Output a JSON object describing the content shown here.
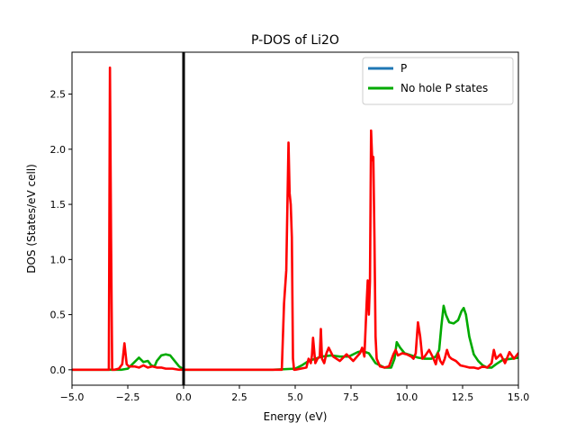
{
  "chart_data": {
    "type": "line",
    "title": "P-DOS of Li2O",
    "xlabel": "Energy (eV)",
    "ylabel": "DOS (States/eV cell)",
    "xlim": [
      -5,
      15
    ],
    "ylim": [
      -0.14,
      2.88
    ],
    "xticks": [
      -5.0,
      -2.5,
      0.0,
      2.5,
      5.0,
      7.5,
      10.0,
      12.5,
      15.0
    ],
    "xtick_labels": [
      "−5.0",
      "−2.5",
      "0.0",
      "2.5",
      "5.0",
      "7.5",
      "10.0",
      "12.5",
      "15.0"
    ],
    "yticks": [
      0.0,
      0.5,
      1.0,
      1.5,
      2.0,
      2.5
    ],
    "ytick_labels": [
      "0.0",
      "0.5",
      "1.0",
      "1.5",
      "2.0",
      "2.5"
    ],
    "grid": false,
    "legend_position": "top-right",
    "fermi_level": 0.0,
    "series": [
      {
        "name": "P",
        "color": "#1f77b4",
        "in_legend": true,
        "x": [],
        "y": []
      },
      {
        "name": "No hole P states",
        "color": "#00aa00",
        "in_legend": true,
        "x": [
          -5.0,
          -2.8,
          -2.5,
          -2.2,
          -2.0,
          -1.8,
          -1.6,
          -1.45,
          -1.3,
          -1.2,
          -1.0,
          -0.8,
          -0.6,
          -0.4,
          -0.2,
          -0.05,
          0.0,
          4.0,
          5.0,
          5.3,
          5.6,
          5.9,
          6.2,
          6.6,
          7.0,
          7.4,
          7.8,
          8.0,
          8.3,
          8.6,
          9.0,
          9.3,
          9.45,
          9.55,
          9.7,
          9.9,
          10.2,
          10.5,
          10.8,
          11.1,
          11.3,
          11.45,
          11.55,
          11.65,
          11.75,
          11.9,
          12.1,
          12.3,
          12.45,
          12.55,
          12.65,
          12.8,
          13.0,
          13.2,
          13.4,
          13.6,
          13.8,
          14.0,
          14.3,
          14.7,
          15.0
        ],
        "y": [
          0.0,
          0.0,
          0.01,
          0.07,
          0.11,
          0.07,
          0.08,
          0.04,
          0.03,
          0.08,
          0.13,
          0.14,
          0.13,
          0.08,
          0.03,
          0.01,
          0.0,
          0.0,
          0.01,
          0.04,
          0.08,
          0.1,
          0.12,
          0.13,
          0.12,
          0.12,
          0.16,
          0.17,
          0.15,
          0.06,
          0.02,
          0.02,
          0.1,
          0.25,
          0.2,
          0.15,
          0.13,
          0.11,
          0.1,
          0.1,
          0.12,
          0.18,
          0.4,
          0.58,
          0.5,
          0.43,
          0.42,
          0.45,
          0.53,
          0.56,
          0.5,
          0.3,
          0.14,
          0.08,
          0.04,
          0.02,
          0.02,
          0.05,
          0.09,
          0.1,
          0.11
        ]
      },
      {
        "name": "",
        "color": "#ff0000",
        "in_legend": false,
        "x": [
          -5.0,
          -3.45,
          -3.35,
          -3.3,
          -3.25,
          -3.2,
          -3.1,
          -2.9,
          -2.75,
          -2.65,
          -2.55,
          -2.45,
          -2.2,
          -2.0,
          -1.8,
          -1.6,
          -1.4,
          -1.2,
          -1.0,
          -0.8,
          -0.5,
          -0.2,
          0.0,
          4.4,
          4.5,
          4.6,
          4.7,
          4.75,
          4.8,
          4.85,
          4.9,
          4.95,
          5.0,
          5.5,
          5.6,
          5.7,
          5.75,
          5.8,
          5.9,
          6.0,
          6.1,
          6.15,
          6.2,
          6.3,
          6.4,
          6.5,
          6.7,
          7.0,
          7.3,
          7.6,
          7.9,
          8.0,
          8.1,
          8.2,
          8.25,
          8.3,
          8.35,
          8.4,
          8.45,
          8.5,
          8.55,
          8.6,
          8.65,
          8.8,
          9.0,
          9.2,
          9.4,
          9.5,
          9.6,
          9.8,
          10.0,
          10.2,
          10.3,
          10.4,
          10.5,
          10.6,
          10.7,
          10.8,
          11.0,
          11.2,
          11.3,
          11.4,
          11.5,
          11.6,
          11.7,
          11.8,
          11.9,
          12.0,
          12.2,
          12.4,
          12.6,
          12.8,
          13.0,
          13.2,
          13.4,
          13.6,
          13.8,
          13.9,
          14.0,
          14.2,
          14.4,
          14.6,
          14.8,
          15.0
        ],
        "y": [
          0.0,
          0.0,
          0.0,
          2.74,
          1.2,
          0.0,
          0.0,
          0.01,
          0.05,
          0.24,
          0.05,
          0.03,
          0.03,
          0.02,
          0.04,
          0.02,
          0.03,
          0.02,
          0.02,
          0.01,
          0.01,
          0.0,
          0.0,
          0.0,
          0.6,
          0.9,
          2.06,
          1.6,
          1.5,
          1.2,
          0.1,
          0.0,
          0.0,
          0.02,
          0.1,
          0.06,
          0.13,
          0.29,
          0.06,
          0.1,
          0.12,
          0.37,
          0.1,
          0.06,
          0.15,
          0.2,
          0.12,
          0.08,
          0.14,
          0.08,
          0.15,
          0.2,
          0.12,
          0.6,
          0.81,
          0.5,
          0.8,
          2.17,
          1.9,
          1.93,
          1.2,
          0.3,
          0.1,
          0.03,
          0.02,
          0.03,
          0.14,
          0.18,
          0.13,
          0.15,
          0.14,
          0.12,
          0.1,
          0.15,
          0.43,
          0.3,
          0.1,
          0.12,
          0.18,
          0.1,
          0.05,
          0.15,
          0.08,
          0.05,
          0.1,
          0.18,
          0.12,
          0.1,
          0.08,
          0.04,
          0.03,
          0.02,
          0.02,
          0.01,
          0.03,
          0.02,
          0.06,
          0.18,
          0.1,
          0.14,
          0.06,
          0.16,
          0.1,
          0.15
        ]
      }
    ]
  }
}
